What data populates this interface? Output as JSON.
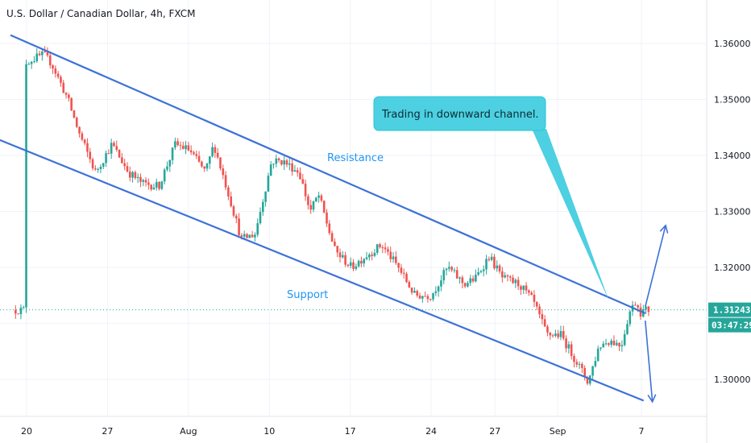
{
  "header": {
    "title": "U.S. Dollar / Canadian Dollar, 4h, FXCM"
  },
  "colors": {
    "up": "#26a69a",
    "down": "#ef5350",
    "channel": "#3d72d8",
    "label": "#2196f3",
    "callout_bg": "#4dd0e1",
    "price_line": "#26a69a",
    "grid": "#f0f3fa"
  },
  "annotations": {
    "resistance_label": "Resistance",
    "support_label": "Support",
    "callout_text": "Trading in downward channel."
  },
  "price_badge": {
    "price": "1.31243",
    "countdown": "03:47:29"
  },
  "chart_data": {
    "type": "candlestick",
    "symbol": "USDCAD",
    "timeframe": "4h",
    "source": "FXCM",
    "ylim": [
      1.292,
      1.366
    ],
    "y_ticks": [
      "1.30000",
      "1.31000",
      "1.32000",
      "1.33000",
      "1.34000",
      "1.35000",
      "1.36000"
    ],
    "x_ticks": [
      "20",
      "27",
      "Aug",
      "10",
      "17",
      "24",
      "27",
      "Sep",
      "7"
    ],
    "x_tick_pos": [
      0.0,
      0.147,
      0.294,
      0.441,
      0.588,
      0.735,
      0.851,
      0.965,
      1.117
    ],
    "grid": true,
    "last_price": 1.31243,
    "channel": {
      "resistance": {
        "start": [
          0.0,
          1.3615
        ],
        "end": [
          1.124,
          1.3118
        ]
      },
      "support": {
        "start": [
          -0.06,
          1.3432
        ],
        "end": [
          1.121,
          1.2962
        ]
      }
    },
    "projection_arrows": [
      {
        "direction": "up",
        "from": [
          1.124,
          1.313
        ],
        "to": [
          1.161,
          1.3275
        ]
      },
      {
        "direction": "down",
        "from": [
          1.124,
          1.3105
        ],
        "to": [
          1.137,
          1.296
        ]
      }
    ],
    "waypoints": [
      [
        0.0,
        1.3565
      ],
      [
        0.035,
        1.358
      ],
      [
        0.05,
        1.3565
      ],
      [
        0.08,
        1.35
      ],
      [
        0.1,
        1.344
      ],
      [
        0.13,
        1.337
      ],
      [
        0.16,
        1.342
      ],
      [
        0.19,
        1.337
      ],
      [
        0.215,
        1.335
      ],
      [
        0.245,
        1.3345
      ],
      [
        0.275,
        1.342
      ],
      [
        0.3,
        1.341
      ],
      [
        0.33,
        1.337
      ],
      [
        0.345,
        1.342
      ],
      [
        0.375,
        1.332
      ],
      [
        0.395,
        1.325
      ],
      [
        0.42,
        1.326
      ],
      [
        0.45,
        1.339
      ],
      [
        0.47,
        1.339
      ],
      [
        0.5,
        1.337
      ],
      [
        0.52,
        1.33
      ],
      [
        0.535,
        1.333
      ],
      [
        0.565,
        1.323
      ],
      [
        0.595,
        1.32
      ],
      [
        0.62,
        1.322
      ],
      [
        0.65,
        1.324
      ],
      [
        0.68,
        1.32
      ],
      [
        0.71,
        1.315
      ],
      [
        0.74,
        1.315
      ],
      [
        0.77,
        1.32
      ],
      [
        0.8,
        1.317
      ],
      [
        0.82,
        1.318
      ],
      [
        0.845,
        1.322
      ],
      [
        0.87,
        1.318
      ],
      [
        0.9,
        1.317
      ],
      [
        0.925,
        1.314
      ],
      [
        0.95,
        1.308
      ],
      [
        0.975,
        1.308
      ],
      [
        1.005,
        1.303
      ],
      [
        1.025,
        1.2995
      ],
      [
        1.045,
        1.306
      ],
      [
        1.065,
        1.307
      ],
      [
        1.085,
        1.306
      ],
      [
        1.1,
        1.312
      ],
      [
        1.112,
        1.314
      ],
      [
        1.12,
        1.312
      ],
      [
        1.13,
        1.3124
      ]
    ]
  }
}
